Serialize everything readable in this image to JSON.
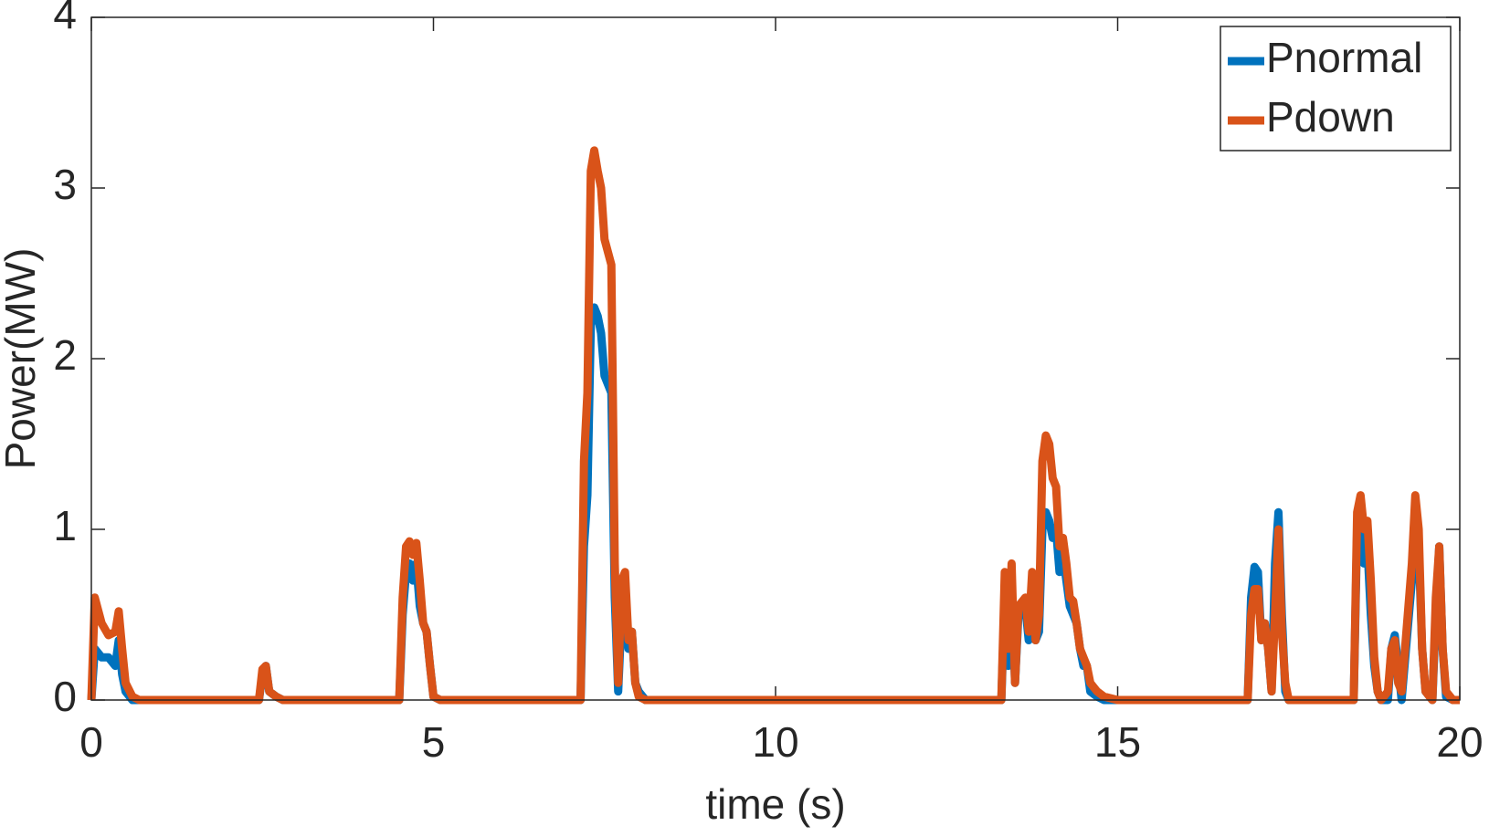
{
  "chart_data": {
    "type": "line",
    "x_label": "time (s)",
    "y_label": "Power(MW)",
    "x": [
      0,
      0.05,
      0.15,
      0.25,
      0.35,
      0.4,
      0.45,
      0.5,
      0.6,
      0.7,
      2.45,
      2.5,
      2.55,
      2.6,
      2.7,
      2.8,
      4.5,
      4.55,
      4.6,
      4.65,
      4.7,
      4.75,
      4.8,
      4.85,
      4.9,
      4.95,
      5.0,
      5.1,
      7.15,
      7.2,
      7.25,
      7.3,
      7.35,
      7.4,
      7.45,
      7.5,
      7.6,
      7.65,
      7.7,
      7.75,
      7.8,
      7.85,
      7.9,
      7.95,
      8.0,
      8.1,
      13.3,
      13.35,
      13.4,
      13.45,
      13.5,
      13.55,
      13.65,
      13.7,
      13.75,
      13.8,
      13.85,
      13.9,
      13.95,
      14.0,
      14.05,
      14.1,
      14.15,
      14.2,
      14.25,
      14.3,
      14.35,
      14.4,
      14.45,
      14.5,
      14.55,
      14.6,
      14.7,
      14.8,
      14.9,
      15.0,
      16.9,
      16.95,
      17.0,
      17.05,
      17.1,
      17.15,
      17.2,
      17.25,
      17.3,
      17.35,
      17.4,
      17.45,
      17.5,
      18.45,
      18.5,
      18.55,
      18.6,
      18.65,
      18.7,
      18.75,
      18.8,
      18.85,
      18.95,
      19.0,
      19.05,
      19.1,
      19.15,
      19.3,
      19.35,
      19.4,
      19.45,
      19.5,
      19.6,
      19.65,
      19.7,
      19.75,
      19.8,
      19.9,
      20
    ],
    "series": [
      {
        "name": "Pnormal",
        "color": "#0072BD",
        "values": [
          0,
          0.3,
          0.25,
          0.25,
          0.2,
          0.35,
          0.15,
          0.05,
          0,
          0,
          0,
          0.15,
          0.2,
          0.05,
          0.02,
          0,
          0,
          0.5,
          0.75,
          0.8,
          0.7,
          0.8,
          0.55,
          0.45,
          0.4,
          0.2,
          0.02,
          0,
          0,
          0.9,
          1.2,
          2.2,
          2.3,
          2.25,
          2.15,
          1.9,
          1.8,
          0.6,
          0.05,
          0.5,
          0.6,
          0.3,
          0.4,
          0.1,
          0.05,
          0,
          0,
          0.6,
          0.2,
          0.7,
          0.1,
          0.5,
          0.55,
          0.35,
          0.7,
          0.35,
          0.4,
          1.0,
          1.1,
          1.05,
          0.95,
          1.0,
          0.75,
          0.85,
          0.7,
          0.55,
          0.5,
          0.45,
          0.3,
          0.2,
          0.2,
          0.05,
          0.02,
          0,
          0,
          0,
          0,
          0.6,
          0.78,
          0.75,
          0.35,
          0.45,
          0.3,
          0.05,
          0.8,
          1.1,
          0.5,
          0.05,
          0,
          0,
          1.0,
          1.15,
          0.8,
          0.9,
          0.5,
          0.2,
          0.05,
          0,
          0,
          0.3,
          0.38,
          0.2,
          0,
          0.7,
          1.1,
          0.9,
          0.3,
          0.05,
          0,
          0.5,
          0.9,
          0.3,
          0.02,
          0,
          0
        ]
      },
      {
        "name": "Pdown",
        "color": "#D95319",
        "values": [
          0,
          0.6,
          0.45,
          0.38,
          0.4,
          0.52,
          0.3,
          0.1,
          0.02,
          0,
          0,
          0.18,
          0.2,
          0.05,
          0.02,
          0,
          0,
          0.6,
          0.9,
          0.93,
          0.85,
          0.92,
          0.7,
          0.45,
          0.4,
          0.2,
          0.02,
          0,
          0,
          1.4,
          1.8,
          3.1,
          3.22,
          3.1,
          3.0,
          2.7,
          2.55,
          0.8,
          0.1,
          0.7,
          0.75,
          0.35,
          0.4,
          0.1,
          0.02,
          0,
          0,
          0.75,
          0.3,
          0.8,
          0.1,
          0.55,
          0.6,
          0.4,
          0.75,
          0.35,
          0.5,
          1.4,
          1.55,
          1.5,
          1.3,
          1.25,
          0.9,
          0.95,
          0.8,
          0.6,
          0.58,
          0.45,
          0.3,
          0.25,
          0.2,
          0.1,
          0.05,
          0.02,
          0.01,
          0,
          0,
          0.5,
          0.65,
          0.65,
          0.35,
          0.45,
          0.3,
          0.05,
          0.5,
          1.0,
          0.4,
          0.1,
          0,
          0,
          1.1,
          1.2,
          1.0,
          1.05,
          0.7,
          0.25,
          0.05,
          0,
          0.05,
          0.3,
          0.35,
          0.1,
          0.05,
          0.8,
          1.2,
          1.0,
          0.3,
          0.05,
          0,
          0.6,
          0.9,
          0.3,
          0.05,
          0,
          0
        ]
      }
    ],
    "xlim": [
      0,
      20
    ],
    "xticks": [
      0,
      5,
      10,
      15,
      20
    ],
    "ylim": [
      0,
      4
    ],
    "yticks": [
      0,
      1,
      2,
      3,
      4
    ],
    "grid": false,
    "legend": "northeast"
  }
}
